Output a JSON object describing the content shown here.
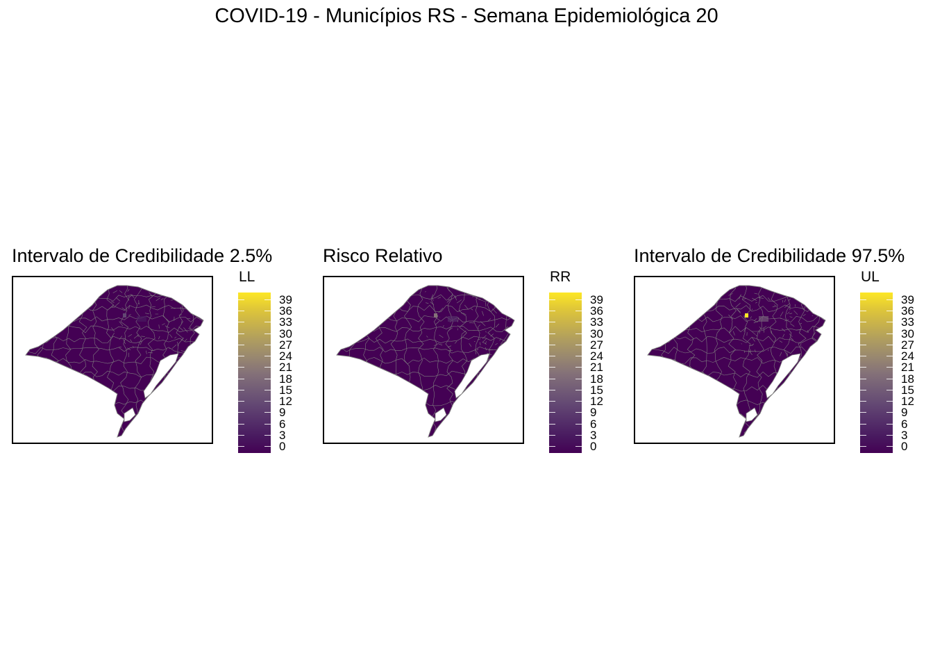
{
  "title": "COVID-19 - Municípios RS - Semana Epidemiológica 20",
  "colors": {
    "low": "#440154",
    "high": "#fde725",
    "border": "#7f7f7f",
    "lagoon": "#ffffff"
  },
  "legend_ticks": [
    "39",
    "36",
    "33",
    "30",
    "27",
    "24",
    "21",
    "18",
    "15",
    "12",
    "9",
    "6",
    "3",
    "0"
  ],
  "legend_range": [
    0,
    39
  ],
  "panels": [
    {
      "title": "Intervalo de Credibilidade 2.5%",
      "legend_title": "LL",
      "max_hotspot_value": 10
    },
    {
      "title": "Risco Relativo",
      "legend_title": "RR",
      "max_hotspot_value": 20
    },
    {
      "title": "Intervalo de Credibilidade 97.5%",
      "legend_title": "UL",
      "max_hotspot_value": 39
    }
  ]
}
